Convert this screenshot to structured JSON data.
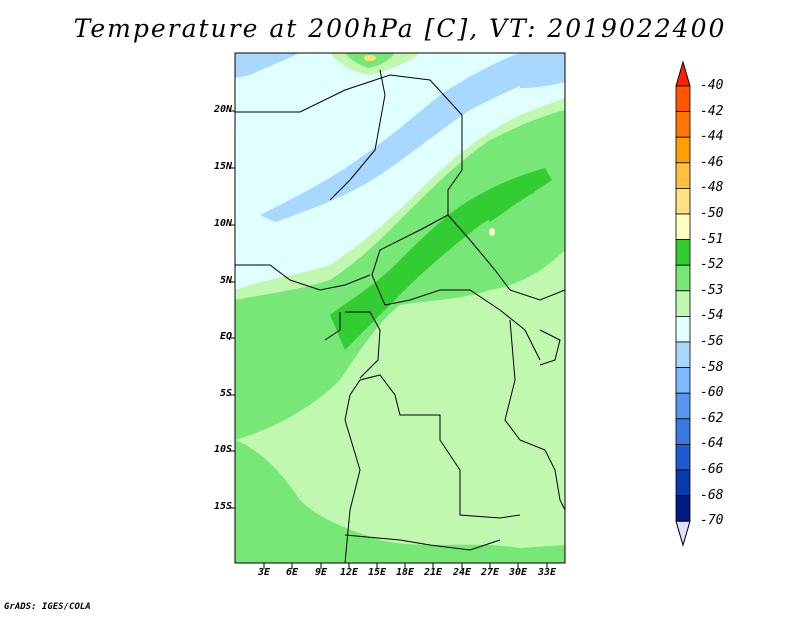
{
  "title": "Temperature at 200hPa [C], VT: 2019022400",
  "credit": "GrADS: IGES/COLA",
  "map": {
    "lat_labels": [
      "20N",
      "15N",
      "10N",
      "5N",
      "EQ",
      "5S",
      "10S",
      "15S"
    ],
    "lon_labels": [
      "3E",
      "6E",
      "9E",
      "12E",
      "15E",
      "18E",
      "21E",
      "24E",
      "27E",
      "30E",
      "33E"
    ],
    "background_color": "#e0ffff"
  },
  "legend": {
    "units": "C",
    "levels": [
      {
        "label": "-40",
        "color": "#ff2200"
      },
      {
        "label": "-42",
        "color": "#ff5500"
      },
      {
        "label": "-44",
        "color": "#ff7700"
      },
      {
        "label": "-46",
        "color": "#ffa000"
      },
      {
        "label": "-48",
        "color": "#ffc040"
      },
      {
        "label": "-50",
        "color": "#ffe080"
      },
      {
        "label": "-51",
        "color": "#ffffc0"
      },
      {
        "label": "-52",
        "color": "#33cc33"
      },
      {
        "label": "-53",
        "color": "#77e877"
      },
      {
        "label": "-54",
        "color": "#c0f8b0"
      },
      {
        "label": "-56",
        "color": "#e0ffff"
      },
      {
        "label": "-58",
        "color": "#a8d8ff"
      },
      {
        "label": "-60",
        "color": "#80b8ff"
      },
      {
        "label": "-62",
        "color": "#5a96f0"
      },
      {
        "label": "-64",
        "color": "#3a78e0"
      },
      {
        "label": "-66",
        "color": "#1e5ad0"
      },
      {
        "label": "-68",
        "color": "#0a3ab0"
      },
      {
        "label": "-70",
        "color": "#001a80"
      }
    ],
    "bottom_color": "#e0e0ff"
  }
}
